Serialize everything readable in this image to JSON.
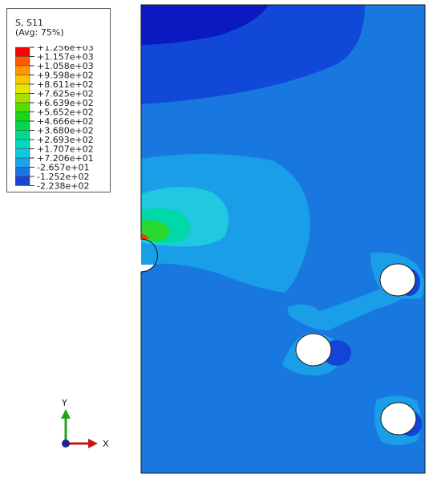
{
  "legend": {
    "title_line1": "S, S11",
    "title_line2": "(Avg: 75%)",
    "entries": [
      {
        "label": "+1.256e+03",
        "color": "#ff0000"
      },
      {
        "label": "+1.157e+03",
        "color": "#ff5a00"
      },
      {
        "label": "+1.058e+03",
        "color": "#ff9800"
      },
      {
        "label": "+9.598e+02",
        "color": "#ffc400"
      },
      {
        "label": "+8.611e+02",
        "color": "#e6e600"
      },
      {
        "label": "+7.625e+02",
        "color": "#a6e000"
      },
      {
        "label": "+6.639e+02",
        "color": "#55dd00"
      },
      {
        "label": "+5.652e+02",
        "color": "#18d818"
      },
      {
        "label": "+4.666e+02",
        "color": "#00d850"
      },
      {
        "label": "+3.680e+02",
        "color": "#00d88a"
      },
      {
        "label": "+2.693e+02",
        "color": "#00d8c2"
      },
      {
        "label": "+1.707e+02",
        "color": "#12c8e0"
      },
      {
        "label": "+7.206e+01",
        "color": "#1ba2e8"
      },
      {
        "label": "-2.657e+01",
        "color": "#1e74e0"
      },
      {
        "label": "-1.252e+02",
        "color": "#1a44d8"
      },
      {
        "label": "-2.238e+02",
        "color": "#0a10c8"
      }
    ]
  },
  "axes": {
    "x_label": "X",
    "y_label": "Y",
    "colors": {
      "x": "#c01818",
      "y": "#22a022",
      "origin": "#1a2a8c"
    }
  },
  "plot_colors": {
    "plate_base": "#1878e0",
    "top_band": "#1248d8",
    "top_corner": "#0a1ac0",
    "light_zone": "#1a9ee8",
    "cyan_zone": "#20c8e0",
    "teal_zone": "#00d8a8",
    "green_zone": "#28d830",
    "hot_spot": "#ff3300",
    "hole_fill": "#ffffff"
  }
}
